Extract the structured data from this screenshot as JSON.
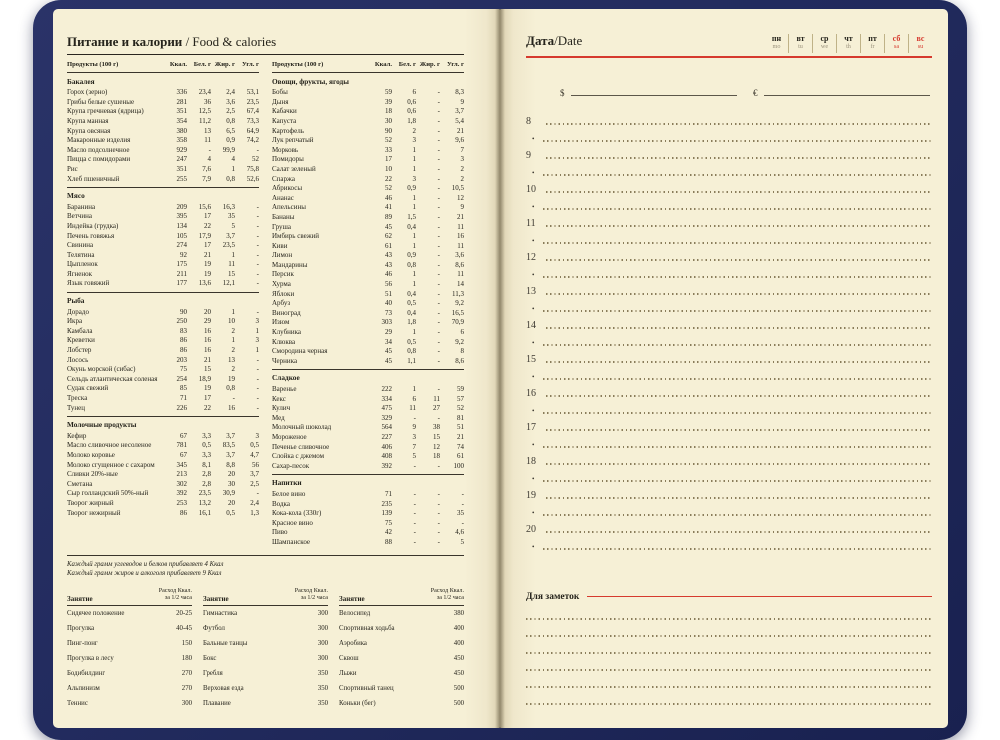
{
  "colors": {
    "accent_red": "#d63a2e",
    "cover_navy": "#222b5e",
    "page_cream": "#f6f0d6"
  },
  "left_page": {
    "title": "Питание и калории",
    "title_suffix": " / Food & calories",
    "table_headers": [
      "Продукты (100 г)",
      "Ккал.",
      "Бел. г",
      "Жир. г",
      "Угл. г"
    ],
    "columns": [
      {
        "sections": [
          {
            "title": "Бакалея",
            "rows": [
              [
                "Горох (зерно)",
                "336",
                "23,4",
                "2,4",
                "53,1"
              ],
              [
                "Грибы белые сушеные",
                "281",
                "36",
                "3,6",
                "23,5"
              ],
              [
                "Крупа гречневая (ядрица)",
                "351",
                "12,5",
                "2,5",
                "67,4"
              ],
              [
                "Крупа манная",
                "354",
                "11,2",
                "0,8",
                "73,3"
              ],
              [
                "Крупа овсяная",
                "380",
                "13",
                "6,5",
                "64,9"
              ],
              [
                "Макаронные изделия",
                "358",
                "11",
                "0,9",
                "74,2"
              ],
              [
                "Масло подсолнечное",
                "929",
                "-",
                "99,9",
                "-"
              ],
              [
                "Пицца с помидорами",
                "247",
                "4",
                "4",
                "52"
              ],
              [
                "Рис",
                "351",
                "7,6",
                "1",
                "75,8"
              ],
              [
                "Хлеб пшеничный",
                "255",
                "7,9",
                "0,8",
                "52,6"
              ]
            ]
          },
          {
            "title": "Мясо",
            "rows": [
              [
                "Баранина",
                "209",
                "15,6",
                "16,3",
                "-"
              ],
              [
                "Ветчина",
                "395",
                "17",
                "35",
                "-"
              ],
              [
                "Индейка (грудка)",
                "134",
                "22",
                "5",
                "-"
              ],
              [
                "Печень говяжья",
                "105",
                "17,9",
                "3,7",
                "-"
              ],
              [
                "Свинина",
                "274",
                "17",
                "23,5",
                "-"
              ],
              [
                "Телятина",
                "92",
                "21",
                "1",
                "-"
              ],
              [
                "Цыпленок",
                "175",
                "19",
                "11",
                "-"
              ],
              [
                "Ягненок",
                "211",
                "19",
                "15",
                "-"
              ],
              [
                "Язык говяжий",
                "177",
                "13,6",
                "12,1",
                "-"
              ]
            ]
          },
          {
            "title": "Рыба",
            "rows": [
              [
                "Дорадо",
                "90",
                "20",
                "1",
                "-"
              ],
              [
                "Икра",
                "250",
                "29",
                "10",
                "3"
              ],
              [
                "Камбала",
                "83",
                "16",
                "2",
                "1"
              ],
              [
                "Креветки",
                "86",
                "16",
                "1",
                "3"
              ],
              [
                "Лобстер",
                "86",
                "16",
                "2",
                "1"
              ],
              [
                "Лосось",
                "203",
                "21",
                "13",
                "-"
              ],
              [
                "Окунь морской (сибас)",
                "75",
                "15",
                "2",
                "-"
              ],
              [
                "Сельдь атлантическая соленая",
                "254",
                "18,9",
                "19",
                "-"
              ],
              [
                "Судак свежий",
                "85",
                "19",
                "0,8",
                "-"
              ],
              [
                "Треска",
                "71",
                "17",
                "-",
                "-"
              ],
              [
                "Тунец",
                "226",
                "22",
                "16",
                "-"
              ]
            ]
          },
          {
            "title": "Молочные продукты",
            "rows": [
              [
                "Кефир",
                "67",
                "3,3",
                "3,7",
                "3"
              ],
              [
                "Масло сливочное несоленое",
                "781",
                "0,5",
                "83,5",
                "0,5"
              ],
              [
                "Молоко коровье",
                "67",
                "3,3",
                "3,7",
                "4,7"
              ],
              [
                "Молоко сгущенное с сахаром",
                "345",
                "8,1",
                "8,8",
                "56"
              ],
              [
                "Сливки 20%-ные",
                "213",
                "2,8",
                "20",
                "3,7"
              ],
              [
                "Сметана",
                "302",
                "2,8",
                "30",
                "2,5"
              ],
              [
                "Сыр голландский 50%-ный",
                "392",
                "23,5",
                "30,9",
                "-"
              ],
              [
                "Творог жирный",
                "253",
                "13,2",
                "20",
                "2,4"
              ],
              [
                "Творог нежирный",
                "86",
                "16,1",
                "0,5",
                "1,3"
              ]
            ]
          }
        ]
      },
      {
        "sections": [
          {
            "title": "Овощи, фрукты, ягоды",
            "rows": [
              [
                "Бобы",
                "59",
                "6",
                "-",
                "8,3"
              ],
              [
                "Дыня",
                "39",
                "0,6",
                "-",
                "9"
              ],
              [
                "Кабачки",
                "18",
                "0,6",
                "-",
                "3,7"
              ],
              [
                "Капуста",
                "30",
                "1,8",
                "-",
                "5,4"
              ],
              [
                "Картофель",
                "90",
                "2",
                "-",
                "21"
              ],
              [
                "Лук репчатый",
                "52",
                "3",
                "-",
                "9,6"
              ],
              [
                "Морковь",
                "33",
                "1",
                "-",
                "7"
              ],
              [
                "Помидоры",
                "17",
                "1",
                "-",
                "3"
              ],
              [
                "Салат зеленый",
                "10",
                "1",
                "-",
                "2"
              ],
              [
                "Спаржа",
                "22",
                "3",
                "-",
                "2"
              ],
              [
                "Абрикосы",
                "52",
                "0,9",
                "-",
                "10,5"
              ],
              [
                "Ананас",
                "46",
                "1",
                "-",
                "12"
              ],
              [
                "Апельсины",
                "41",
                "1",
                "-",
                "9"
              ],
              [
                "Бананы",
                "89",
                "1,5",
                "-",
                "21"
              ],
              [
                "Груша",
                "45",
                "0,4",
                "-",
                "11"
              ],
              [
                "Имбирь свежий",
                "62",
                "1",
                "-",
                "16"
              ],
              [
                "Киви",
                "61",
                "1",
                "-",
                "11"
              ],
              [
                "Лимон",
                "43",
                "0,9",
                "-",
                "3,6"
              ],
              [
                "Мандарины",
                "43",
                "0,8",
                "-",
                "8,6"
              ],
              [
                "Персик",
                "46",
                "1",
                "-",
                "11"
              ],
              [
                "Хурма",
                "56",
                "1",
                "-",
                "14"
              ],
              [
                "Яблоки",
                "51",
                "0,4",
                "-",
                "11,3"
              ],
              [
                "Арбуз",
                "40",
                "0,5",
                "-",
                "9,2"
              ],
              [
                "Виноград",
                "73",
                "0,4",
                "-",
                "16,5"
              ],
              [
                "Изюм",
                "303",
                "1,8",
                "-",
                "70,9"
              ],
              [
                "Клубника",
                "29",
                "1",
                "-",
                "6"
              ],
              [
                "Клюква",
                "34",
                "0,5",
                "-",
                "9,2"
              ],
              [
                "Смородина черная",
                "45",
                "0,8",
                "-",
                "8"
              ],
              [
                "Черника",
                "45",
                "1,1",
                "-",
                "8,6"
              ]
            ]
          },
          {
            "title": "Сладкое",
            "rows": [
              [
                "Варенье",
                "222",
                "1",
                "-",
                "59"
              ],
              [
                "Кекс",
                "334",
                "6",
                "11",
                "57"
              ],
              [
                "Кулич",
                "475",
                "11",
                "27",
                "52"
              ],
              [
                "Мед",
                "329",
                "-",
                "-",
                "81"
              ],
              [
                "Молочный шоколад",
                "564",
                "9",
                "38",
                "51"
              ],
              [
                "Мороженое",
                "227",
                "3",
                "15",
                "21"
              ],
              [
                "Печенье сливочное",
                "406",
                "7",
                "12",
                "74"
              ],
              [
                "Слойка с джемом",
                "408",
                "5",
                "18",
                "61"
              ],
              [
                "Сахар-песок",
                "392",
                "-",
                "-",
                "100"
              ]
            ]
          },
          {
            "title": "Напитки",
            "rows": [
              [
                "Белое вино",
                "71",
                "-",
                "-",
                "-"
              ],
              [
                "Водка",
                "235",
                "-",
                "-",
                "-"
              ],
              [
                "Кока-кола (330г)",
                "139",
                "-",
                "-",
                "35"
              ],
              [
                "Красное вино",
                "75",
                "-",
                "-",
                "-"
              ],
              [
                "Пиво",
                "42",
                "-",
                "-",
                "4,6"
              ],
              [
                "Шампанское",
                "88",
                "-",
                "-",
                "5"
              ]
            ]
          }
        ]
      }
    ],
    "footnotes": [
      "Каждый грамм углеводов и белков прибавляет 4 Ккал",
      "Каждый грамм жиров и алкоголя прибавляет 9 Ккал"
    ],
    "activities": {
      "col_label": "Занятие",
      "value_label_line1": "Расход Ккал.",
      "value_label_line2": "за 1/2 часа",
      "groups": [
        [
          [
            "Сидячее положение",
            "20-25"
          ],
          [
            "Прогулка",
            "40-45"
          ],
          [
            "Пинг-понг",
            "150"
          ],
          [
            "Прогулка в лесу",
            "180"
          ],
          [
            "Бодибилдинг",
            "270"
          ],
          [
            "Альпинизм",
            "270"
          ],
          [
            "Теннис",
            "300"
          ]
        ],
        [
          [
            "Гимнастика",
            "300"
          ],
          [
            "Футбол",
            "300"
          ],
          [
            "Бальные танцы",
            "300"
          ],
          [
            "Бокс",
            "300"
          ],
          [
            "Гребля",
            "350"
          ],
          [
            "Верховая езда",
            "350"
          ],
          [
            "Плавание",
            "350"
          ]
        ],
        [
          [
            "Велосипед",
            "380"
          ],
          [
            "Спортивная ходьба",
            "400"
          ],
          [
            "Аэробика",
            "400"
          ],
          [
            "Сквош",
            "450"
          ],
          [
            "Лыжи",
            "450"
          ],
          [
            "Спортивный танец",
            "500"
          ],
          [
            "Коньки (бег)",
            "500"
          ]
        ]
      ]
    }
  },
  "right_page": {
    "date_label": "Дата",
    "date_suffix": "/Date",
    "days": [
      {
        "ru": "пн",
        "en": "mo",
        "weekend": false
      },
      {
        "ru": "вт",
        "en": "tu",
        "weekend": false
      },
      {
        "ru": "ср",
        "en": "we",
        "weekend": false
      },
      {
        "ru": "чт",
        "en": "th",
        "weekend": false
      },
      {
        "ru": "пт",
        "en": "fr",
        "weekend": false
      },
      {
        "ru": "сб",
        "en": "sa",
        "weekend": true
      },
      {
        "ru": "вс",
        "en": "su",
        "weekend": true
      }
    ],
    "currency_dollar": "$",
    "currency_euro": "€",
    "hours": [
      "8",
      "9",
      "10",
      "11",
      "12",
      "13",
      "14",
      "15",
      "16",
      "17",
      "18",
      "19",
      "20"
    ],
    "half_hour_bullet": "•",
    "notes_label": "Для заметок",
    "notes_lines": 6
  }
}
